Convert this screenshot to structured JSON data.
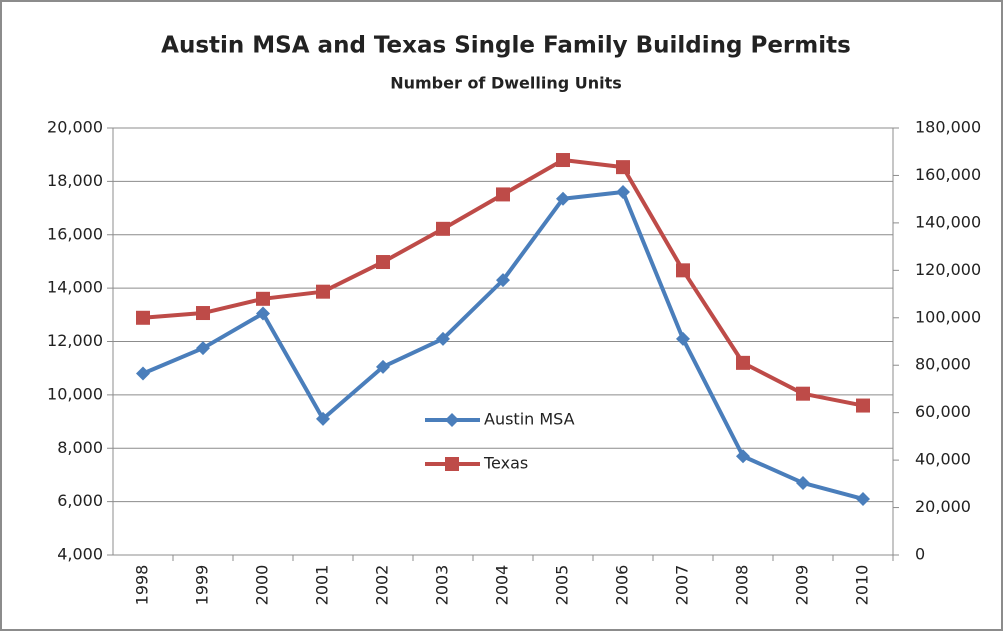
{
  "chart_data": {
    "type": "line",
    "title": "Austin MSA and Texas Single Family Building Permits",
    "subtitle": "Number of Dwelling Units",
    "categories": [
      "1998",
      "1999",
      "2000",
      "2001",
      "2002",
      "2003",
      "2004",
      "2005",
      "2006",
      "2007",
      "2008",
      "2009",
      "2010"
    ],
    "series": [
      {
        "name": "Austin MSA",
        "color": "#4a7ebb",
        "marker": "diamond",
        "axis": "y",
        "values": [
          10800,
          11750,
          13050,
          9100,
          11050,
          12100,
          14300,
          17350,
          17600,
          12100,
          7700,
          6700,
          6100
        ]
      },
      {
        "name": "Texas",
        "color": "#be4b48",
        "marker": "square",
        "axis": "y2",
        "values": [
          100000,
          102000,
          108000,
          111000,
          123500,
          137500,
          152000,
          166500,
          163500,
          120000,
          81000,
          68000,
          63000
        ]
      }
    ],
    "ylim": [
      4000,
      20000
    ],
    "yticks": [
      {
        "value": 4000,
        "label": "4,000"
      },
      {
        "value": 6000,
        "label": "6,000"
      },
      {
        "value": 8000,
        "label": "8,000"
      },
      {
        "value": 10000,
        "label": "10,000"
      },
      {
        "value": 12000,
        "label": "12,000"
      },
      {
        "value": 14000,
        "label": "14,000"
      },
      {
        "value": 16000,
        "label": "16,000"
      },
      {
        "value": 18000,
        "label": "18,000"
      },
      {
        "value": 20000,
        "label": "20,000"
      }
    ],
    "y2lim": [
      0,
      180000
    ],
    "y2ticks": [
      0,
      {
        "value": 20000,
        "label": "20,000"
      },
      {
        "value": 40000,
        "label": "40,000"
      },
      {
        "value": 60000,
        "label": "60,000"
      },
      {
        "value": 80000,
        "label": "80,000"
      },
      {
        "value": 100000,
        "label": "100,000"
      },
      {
        "value": 120000,
        "label": "120,000"
      },
      {
        "value": 140000,
        "label": "140,000"
      },
      {
        "value": 160000,
        "label": "160,000"
      },
      {
        "value": 180000,
        "label": "180,000"
      }
    ],
    "grid": true
  }
}
